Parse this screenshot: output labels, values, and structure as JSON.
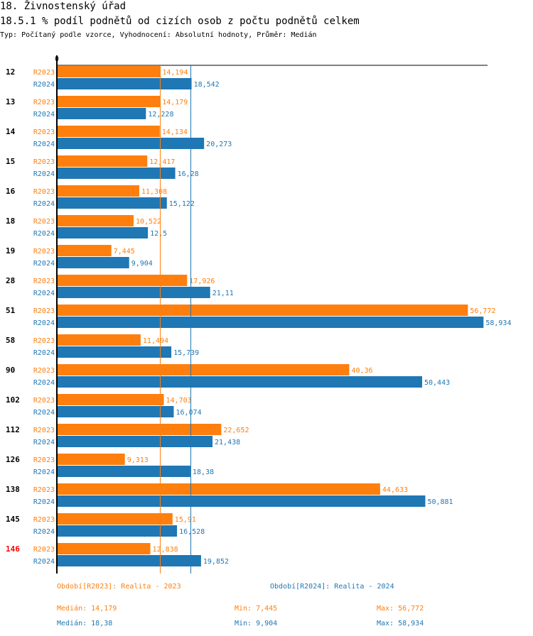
{
  "header": {
    "title": "18. Živnostenský úřad",
    "subtitle": "18.5.1 % podíl podnětů od cizích osob z počtu podnětů celkem",
    "meta": "Typ: Počítaný podle vzorce, Vyhodnocení: Absolutní hodnoty, Průměr: Medián"
  },
  "colors": {
    "R2023": "#ff7f0e",
    "R2024": "#1f77b4",
    "highlight": "#ff0000",
    "axis": "#000000"
  },
  "chart_data": {
    "type": "bar",
    "orientation": "horizontal",
    "title": "18.5.1 % podíl podnětů od cizích osob z počtu podnětů celkem",
    "xlabel": "",
    "ylabel": "",
    "x_tick_labels": [
      "0"
    ],
    "xlim": [
      0,
      60
    ],
    "categories": [
      "12",
      "13",
      "14",
      "15",
      "16",
      "18",
      "19",
      "28",
      "51",
      "58",
      "90",
      "102",
      "112",
      "126",
      "138",
      "145",
      "146"
    ],
    "highlighted_category": "146",
    "series": [
      {
        "name": "R2023",
        "legend": "Období[R2023]: Realita - 2023",
        "values": [
          14.194,
          14.179,
          14.134,
          12.417,
          11.308,
          10.522,
          7.445,
          17.926,
          56.772,
          11.494,
          40.36,
          14.703,
          22.652,
          9.313,
          44.633,
          15.91,
          12.838
        ],
        "labels": [
          "14,194",
          "14,179",
          "14,134",
          "12,417",
          "11,308",
          "10,522",
          "7,445",
          "17,926",
          "56,772",
          "11,494",
          "40,36",
          "14,703",
          "22,652",
          "9,313",
          "44,633",
          "15,91",
          "12,838"
        ],
        "median": 14.179
      },
      {
        "name": "R2024",
        "legend": "Období[R2024]: Realita - 2024",
        "values": [
          18.542,
          12.228,
          20.273,
          16.28,
          15.122,
          12.5,
          9.904,
          21.11,
          58.934,
          15.739,
          50.443,
          16.074,
          21.438,
          18.38,
          50.881,
          16.528,
          19.852
        ],
        "labels": [
          "18,542",
          "12,228",
          "20,273",
          "16,28",
          "15,122",
          "12,5",
          "9,904",
          "21,11",
          "58,934",
          "15,739",
          "50,443",
          "16,074",
          "21,438",
          "18,38",
          "50,881",
          "16,528",
          "19,852"
        ],
        "median": 18.38
      }
    ],
    "legend_placement": "bottom"
  },
  "stats": {
    "R2023": {
      "legend": "Období[R2023]: Realita - 2023",
      "median": "Medián: 14,179",
      "min": "Min: 7,445",
      "max": "Max: 56,772"
    },
    "R2024": {
      "legend": "Období[R2024]: Realita - 2024",
      "median": "Medián: 18,38",
      "min": "Min: 9,904",
      "max": "Max: 58,934"
    }
  }
}
